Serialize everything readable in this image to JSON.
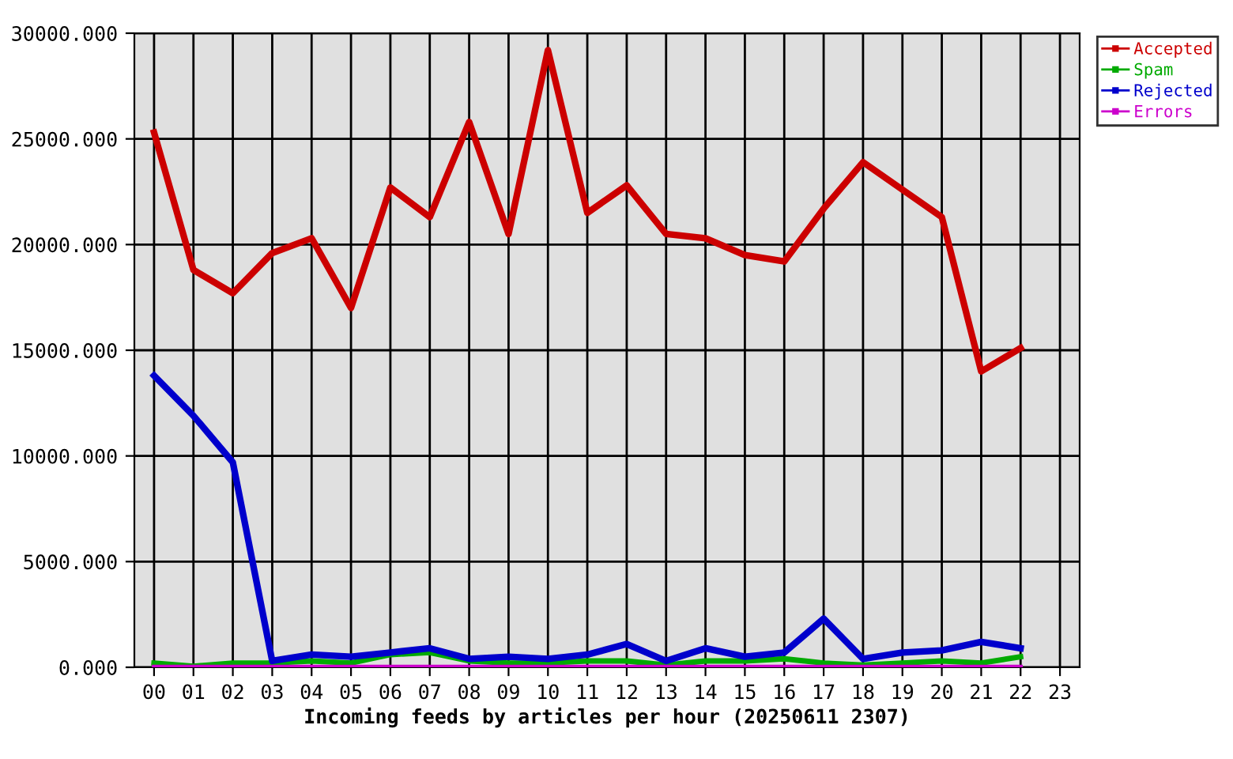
{
  "chart_data": {
    "type": "line",
    "xlabel": "Incoming feeds by articles per hour (20250611 2307)",
    "categories": [
      "00",
      "01",
      "02",
      "03",
      "04",
      "05",
      "06",
      "07",
      "08",
      "09",
      "10",
      "11",
      "12",
      "13",
      "14",
      "15",
      "16",
      "17",
      "18",
      "19",
      "20",
      "21",
      "22",
      "23"
    ],
    "series": [
      {
        "name": "Accepted",
        "color": "#cc0000",
        "values": [
          25300,
          18800,
          17700,
          19600,
          20300,
          17000,
          22700,
          21300,
          25800,
          20500,
          29200,
          21500,
          22800,
          20500,
          20300,
          19500,
          19200,
          21700,
          23900,
          22600,
          21300,
          14000,
          15100,
          null
        ]
      },
      {
        "name": "Spam",
        "color": "#00aa00",
        "values": [
          200,
          50,
          200,
          200,
          300,
          200,
          600,
          700,
          300,
          200,
          200,
          300,
          300,
          100,
          300,
          300,
          400,
          200,
          100,
          200,
          300,
          200,
          500,
          null
        ]
      },
      {
        "name": "Rejected",
        "color": "#0000cc",
        "values": [
          13800,
          11900,
          9700,
          300,
          600,
          500,
          700,
          900,
          400,
          500,
          400,
          600,
          1100,
          300,
          900,
          500,
          700,
          2300,
          400,
          700,
          800,
          1200,
          900,
          null
        ]
      },
      {
        "name": "Errors",
        "color": "#cc00cc",
        "values": [
          20,
          20,
          20,
          20,
          20,
          20,
          20,
          20,
          20,
          20,
          20,
          20,
          20,
          20,
          20,
          20,
          20,
          20,
          20,
          20,
          20,
          20,
          20,
          null
        ]
      }
    ],
    "ylim": [
      0,
      30000
    ],
    "yticks": [
      {
        "value": 0,
        "label": "0.000"
      },
      {
        "value": 5000,
        "label": "5000.000"
      },
      {
        "value": 10000,
        "label": "10000.000"
      },
      {
        "value": 15000,
        "label": "15000.000"
      },
      {
        "value": 20000,
        "label": "20000.000"
      },
      {
        "value": 25000,
        "label": "25000.000"
      },
      {
        "value": 30000,
        "label": "30000.000"
      }
    ],
    "grid": true,
    "legend": "top right",
    "marker": "none",
    "line_style": "solid"
  }
}
